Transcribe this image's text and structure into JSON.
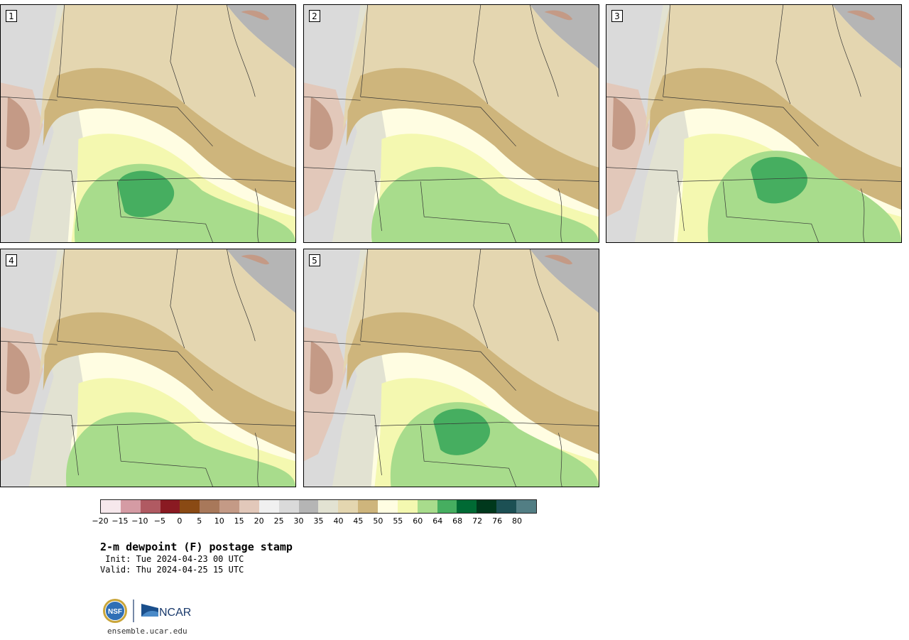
{
  "panels": [
    {
      "label": "1",
      "green_core": 0.25
    },
    {
      "label": "2",
      "green_core": 0.1
    },
    {
      "label": "3",
      "green_core": 0.9
    },
    {
      "label": "4",
      "green_core": 0.05
    },
    {
      "label": "5",
      "green_core": 0.55
    }
  ],
  "colorbar": {
    "colors": [
      "#f6e8ec",
      "#d59ba4",
      "#b05a62",
      "#8a1a22",
      "#8a4a14",
      "#a8785a",
      "#c49a86",
      "#e2c8ba",
      "#f0f0f0",
      "#dadada",
      "#b5b5b5",
      "#e2e2d2",
      "#e4d6b0",
      "#ceb57c",
      "#fffde2",
      "#f4f8b0",
      "#a8dc8c",
      "#46ae60",
      "#006a34",
      "#00381c",
      "#1c5054",
      "#527e84"
    ],
    "tick_labels": [
      "−20",
      "−15",
      "−10",
      "−5",
      "0",
      "5",
      "10",
      "15",
      "20",
      "25",
      "30",
      "35",
      "40",
      "45",
      "50",
      "55",
      "60",
      "64",
      "68",
      "72",
      "76",
      "80"
    ]
  },
  "title": "2-m dewpoint (F) postage stamp",
  "init": " Init: Tue 2024-04-23 00 UTC",
  "valid": "Valid: Thu 2024-04-25 15 UTC",
  "logo": {
    "nsf": "NSF",
    "ncar": "NCAR"
  },
  "url": "ensemble.ucar.edu"
}
